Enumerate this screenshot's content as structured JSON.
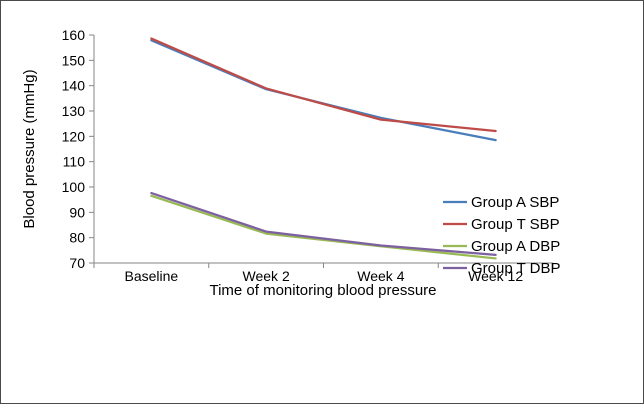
{
  "chart_data": {
    "type": "line",
    "xlabel": "Time of monitoring blood pressure",
    "ylabel": "Blood pressure (mmHg)",
    "categories": [
      "Baseline",
      "Week 2",
      "Week 4",
      "Week 12"
    ],
    "ylim": [
      70,
      160
    ],
    "yticks": [
      70,
      80,
      90,
      100,
      110,
      120,
      130,
      140,
      150,
      160
    ],
    "grid": false,
    "legend_position": "right",
    "series": [
      {
        "name": "Group A SBP",
        "color": "#4a7ebb",
        "values": [
          157.9,
          138.6,
          127.3,
          118.5
        ]
      },
      {
        "name": "Group T SBP",
        "color": "#be4b48",
        "values": [
          158.6,
          138.9,
          126.6,
          122.1
        ]
      },
      {
        "name": "Group A DBP",
        "color": "#98b954",
        "values": [
          96.5,
          81.6,
          76.6,
          71.8
        ]
      },
      {
        "name": "Group T DBP",
        "color": "#7d60a0",
        "values": [
          97.6,
          82.4,
          76.9,
          73.2
        ]
      }
    ]
  }
}
